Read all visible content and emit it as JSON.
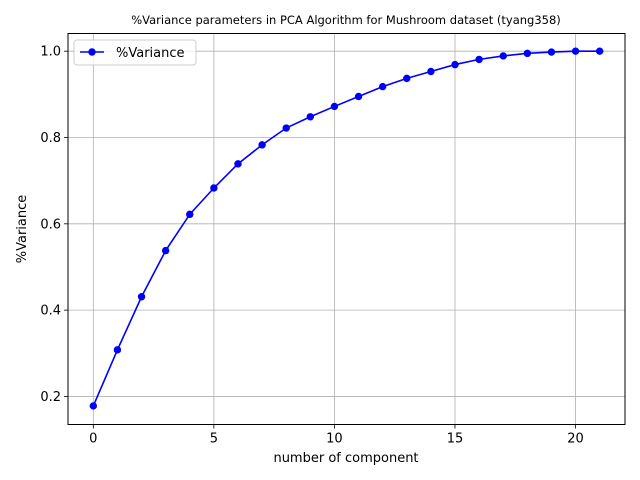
{
  "chart_data": {
    "type": "line",
    "title": "%Variance parameters in PCA Algorithm for Mushroom dataset (tyang358)",
    "xlabel": "number of component",
    "ylabel": "%Variance",
    "xlim": [
      -1.05,
      22.05
    ],
    "ylim": [
      0.135,
      1.041
    ],
    "xticks": [
      0,
      5,
      10,
      15,
      20
    ],
    "yticks": [
      0.2,
      0.4,
      0.6,
      0.8,
      1.0
    ],
    "xtick_labels": [
      "0",
      "5",
      "10",
      "15",
      "20"
    ],
    "ytick_labels": [
      "0.2",
      "0.4",
      "0.6",
      "0.8",
      "1.0"
    ],
    "grid": true,
    "legend_position": "top-left",
    "series": [
      {
        "name": "%Variance",
        "color": "#0000ff",
        "marker": "circle",
        "x": [
          0,
          1,
          2,
          3,
          4,
          5,
          6,
          7,
          8,
          9,
          10,
          11,
          12,
          13,
          14,
          15,
          16,
          17,
          18,
          19,
          20,
          21
        ],
        "y": [
          0.178,
          0.308,
          0.431,
          0.538,
          0.622,
          0.683,
          0.739,
          0.783,
          0.822,
          0.848,
          0.872,
          0.895,
          0.918,
          0.937,
          0.953,
          0.969,
          0.981,
          0.989,
          0.995,
          0.998,
          1.0,
          1.0
        ]
      }
    ]
  }
}
